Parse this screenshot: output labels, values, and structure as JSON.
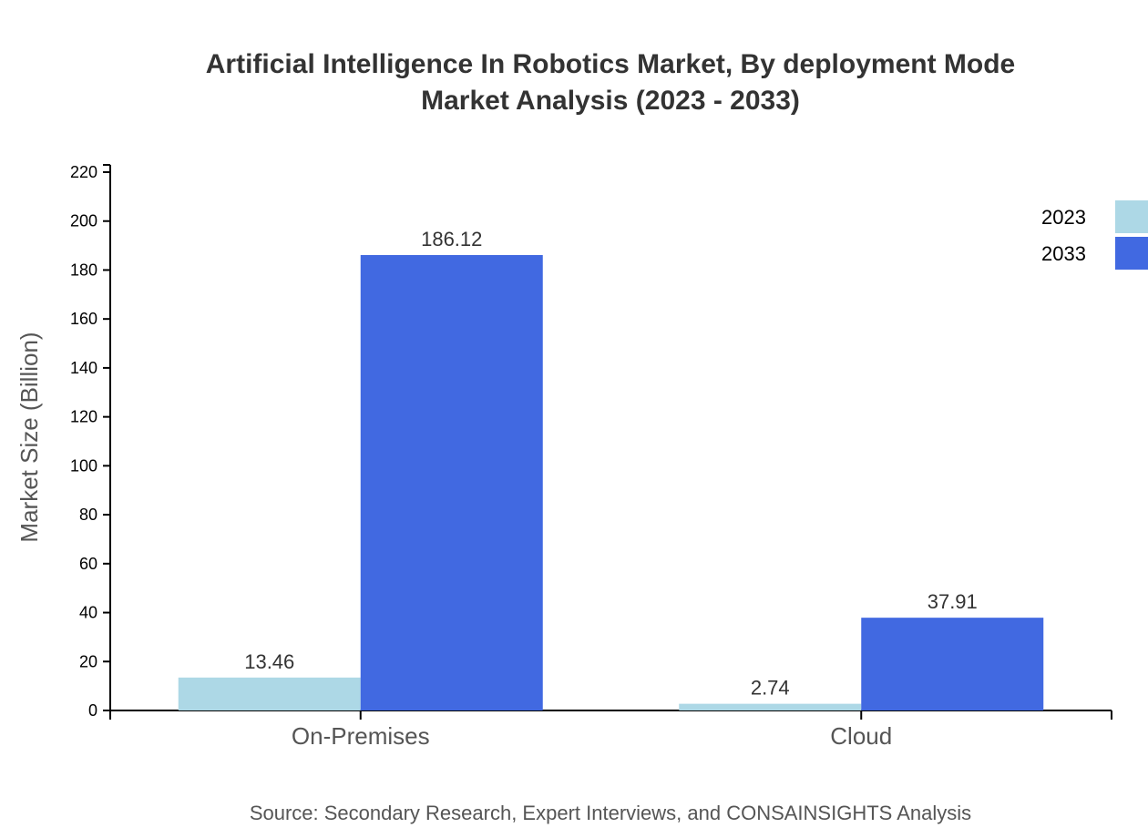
{
  "chart_data": {
    "type": "bar",
    "title_line1": "Artificial Intelligence In Robotics Market, By deployment Mode",
    "title_line2": "Market Analysis (2023 - 2033)",
    "ylabel": "Market Size (Billion)",
    "xlabel": "",
    "ylim": [
      0,
      220
    ],
    "yticks": [
      0,
      20,
      40,
      60,
      80,
      100,
      120,
      140,
      160,
      180,
      200,
      220
    ],
    "categories": [
      "On-Premises",
      "Cloud"
    ],
    "series": [
      {
        "name": "2023",
        "color": "#add8e6",
        "values": [
          13.46,
          2.74
        ]
      },
      {
        "name": "2033",
        "color": "#4169e1",
        "values": [
          186.12,
          37.91
        ]
      }
    ],
    "grid": false,
    "legend_position": "top-right",
    "source": "Source: Secondary Research, Expert Interviews, and CONSAINSIGHTS Analysis"
  }
}
